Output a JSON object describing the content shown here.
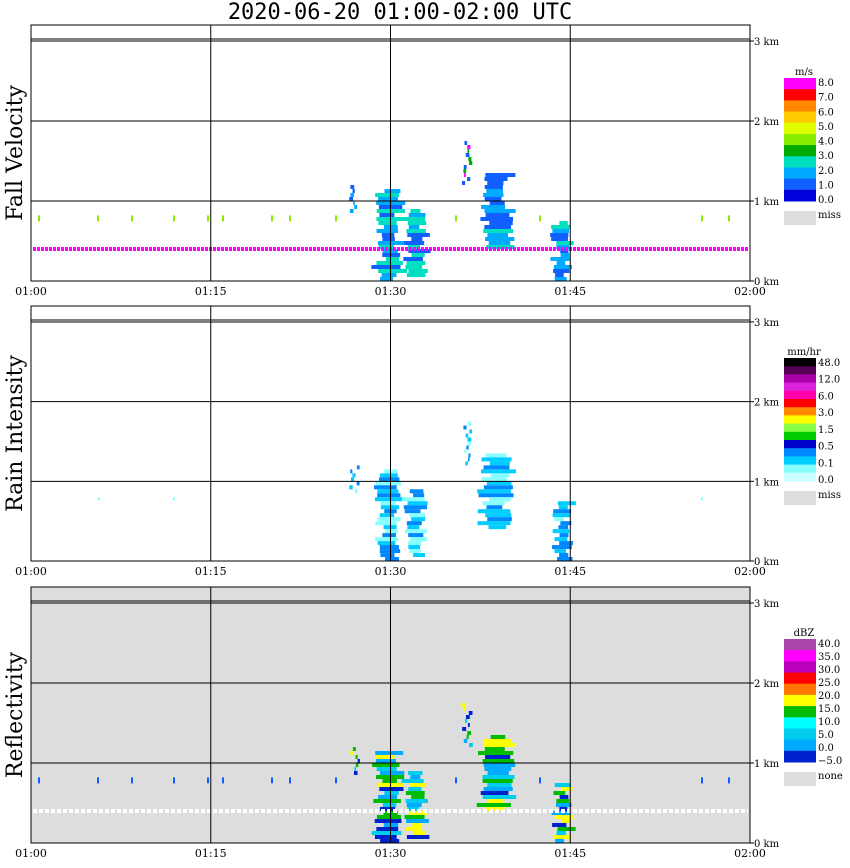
{
  "title": "2020-06-20   01:00-02:00 UTC",
  "chart_data": [
    {
      "type": "heatmap",
      "ylabel": "Fall Velocity",
      "x_ticks": [
        "01:00",
        "01:15",
        "01:30",
        "01:45",
        "02:00"
      ],
      "y_ticks": [
        "0 km",
        "1 km",
        "2 km",
        "3 km"
      ],
      "xlim": [
        "01:00",
        "02:00"
      ],
      "ylim_km": [
        0,
        3.2
      ],
      "colorbar": {
        "unit": "m/s",
        "labels": [
          "8.0",
          "7.0",
          "6.0",
          "5.0",
          "4.0",
          "3.0",
          "2.0",
          "1.0",
          "0.0"
        ],
        "colors": [
          "#ff00ff",
          "#ff0000",
          "#ff8800",
          "#ffcc00",
          "#ddff00",
          "#88ee00",
          "#00aa00",
          "#00e0c0",
          "#00aaff",
          "#1060ff",
          "#0000dd"
        ],
        "missing_label": "miss",
        "missing_color": "#dddddd"
      },
      "background": "#ffffff"
    },
    {
      "type": "heatmap",
      "ylabel": "Rain Intensity",
      "x_ticks": [
        "01:00",
        "01:15",
        "01:30",
        "01:45",
        "02:00"
      ],
      "y_ticks": [
        "0 km",
        "1 km",
        "2 km",
        "3 km"
      ],
      "xlim": [
        "01:00",
        "02:00"
      ],
      "ylim_km": [
        0,
        3.2
      ],
      "colorbar": {
        "unit": "mm/hr",
        "labels": [
          "48.0",
          "12.0",
          "6.0",
          "3.0",
          "1.5",
          "0.5",
          "0.1",
          "0.0"
        ],
        "colors": [
          "#000000",
          "#550055",
          "#aa00aa",
          "#dd22dd",
          "#ff00aa",
          "#ff0000",
          "#ff8800",
          "#ffff00",
          "#88ff44",
          "#00cc00",
          "#0000cc",
          "#0088ff",
          "#00ccff",
          "#88ffff",
          "#ccffff"
        ],
        "missing_label": "miss",
        "missing_color": "#dddddd"
      },
      "background": "#ffffff"
    },
    {
      "type": "heatmap",
      "ylabel": "Reflectivity",
      "x_ticks": [
        "01:00",
        "01:15",
        "01:30",
        "01:45",
        "02:00"
      ],
      "y_ticks": [
        "0 km",
        "1 km",
        "2 km",
        "3 km"
      ],
      "xlim": [
        "01:00",
        "02:00"
      ],
      "ylim_km": [
        0,
        3.2
      ],
      "colorbar": {
        "unit": "dBZ",
        "labels": [
          "40.0",
          "35.0",
          "30.0",
          "25.0",
          "20.0",
          "15.0",
          "10.0",
          "5.0",
          "0.0",
          "−5.0"
        ],
        "colors": [
          "#aa44aa",
          "#ff00ff",
          "#bb00bb",
          "#ff0000",
          "#ff7700",
          "#ffff00",
          "#00bb00",
          "#00ffff",
          "#00ccee",
          "#00aaff",
          "#0022cc"
        ],
        "missing_label": "none",
        "missing_color": "#dddddd"
      },
      "background": "#dddddd"
    }
  ]
}
